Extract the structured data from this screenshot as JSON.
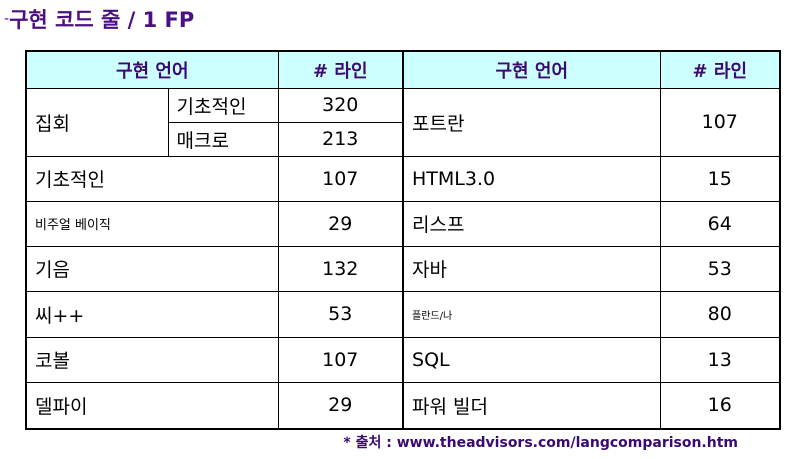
{
  "title_prefix": "-",
  "title": "구현 코드 줄 / 1 FP",
  "headers": {
    "language": "구현 언어",
    "lines": "# 라인"
  },
  "left": {
    "assembly": {
      "label": "집회",
      "basic": {
        "label": "기초적인",
        "value": "320"
      },
      "macro": {
        "label": "매크로",
        "value": "213"
      }
    },
    "rows": [
      {
        "lang": "기초적인",
        "value": "107"
      },
      {
        "lang": "비주얼 베이직",
        "value": "29"
      },
      {
        "lang": "기음",
        "value": "132"
      },
      {
        "lang": "씨++",
        "value": "53"
      },
      {
        "lang": "코볼",
        "value": "107"
      },
      {
        "lang": "델파이",
        "value": "29"
      }
    ]
  },
  "right": {
    "fortran": {
      "lang": "포트란",
      "value": "107"
    },
    "rows": [
      {
        "lang": "HTML3.0",
        "value": "15"
      },
      {
        "lang": "리스프",
        "value": "64"
      },
      {
        "lang": "자바",
        "value": "53"
      },
      {
        "lang": "플란드/나",
        "value": "80"
      },
      {
        "lang": "SQL",
        "value": "13"
      },
      {
        "lang": "파워 빌더",
        "value": "16"
      }
    ]
  },
  "source": "* 출처 : www.theadvisors.com/langcomparison.htm"
}
